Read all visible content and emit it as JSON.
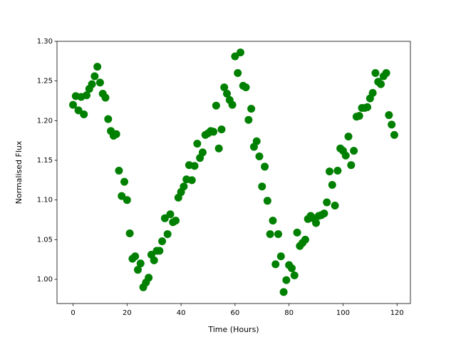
{
  "chart_data": {
    "type": "scatter",
    "xlabel": "Time (Hours)",
    "ylabel": "Normalised Flux",
    "color": "#008000",
    "x": [
      0,
      1,
      2,
      3,
      4,
      5,
      6,
      7,
      8,
      9,
      10,
      11,
      12,
      13,
      14,
      15,
      16,
      17,
      18,
      19,
      20,
      21,
      22,
      23,
      24,
      25,
      26,
      27,
      28,
      29,
      30,
      31,
      32,
      33,
      34,
      35,
      36,
      37,
      38,
      39,
      40,
      41,
      42,
      43,
      44,
      45,
      46,
      47,
      48,
      49,
      50,
      51,
      52,
      53,
      54,
      55,
      56,
      57,
      58,
      59,
      60,
      61,
      62,
      63,
      64,
      65,
      66,
      67,
      68,
      69,
      70,
      71,
      72,
      73,
      74,
      75,
      76,
      77,
      78,
      79,
      80,
      81,
      82,
      83,
      84,
      85,
      86,
      87,
      88,
      89,
      90,
      91,
      92,
      93,
      94,
      95,
      96,
      97,
      98,
      99,
      100,
      101,
      102,
      103,
      104,
      105,
      106,
      107,
      108,
      109,
      110,
      111,
      112,
      113,
      114,
      115,
      116,
      117,
      118,
      119
    ],
    "values": [
      1.22,
      1.231,
      1.213,
      1.23,
      1.208,
      1.232,
      1.24,
      1.246,
      1.256,
      1.268,
      1.248,
      1.234,
      1.229,
      1.202,
      1.187,
      1.181,
      1.183,
      1.137,
      1.105,
      1.123,
      1.1,
      1.058,
      1.026,
      1.029,
      1.012,
      1.02,
      0.99,
      0.996,
      1.002,
      1.031,
      1.024,
      1.036,
      1.036,
      1.048,
      1.077,
      1.057,
      1.082,
      1.072,
      1.074,
      1.103,
      1.11,
      1.117,
      1.126,
      1.144,
      1.125,
      1.143,
      1.171,
      1.153,
      1.16,
      1.182,
      1.184,
      1.187,
      1.186,
      1.219,
      1.165,
      1.189,
      1.242,
      1.234,
      1.226,
      1.22,
      1.281,
      1.26,
      1.286,
      1.244,
      1.242,
      1.201,
      1.215,
      1.167,
      1.174,
      1.155,
      1.117,
      1.142,
      1.099,
      1.057,
      1.074,
      1.019,
      1.057,
      1.029,
      0.984,
      0.999,
      1.018,
      1.014,
      1.005,
      1.059,
      1.042,
      1.046,
      1.05,
      1.076,
      1.08,
      1.077,
      1.071,
      1.08,
      1.081,
      1.083,
      1.097,
      1.136,
      1.119,
      1.093,
      1.137,
      1.165,
      1.162,
      1.156,
      1.18,
      1.144,
      1.162,
      1.205,
      1.206,
      1.216,
      1.216,
      1.217,
      1.228,
      1.235,
      1.26,
      1.249,
      1.246,
      1.256,
      1.26,
      1.207,
      1.195,
      1.182
    ],
    "xlim": [
      -5.95,
      124.95
    ],
    "ylim": [
      0.9695,
      1.3
    ],
    "xticks": [
      0,
      20,
      40,
      60,
      80,
      100,
      120
    ],
    "yticks": [
      {
        "value": 1.0,
        "label": "1.00"
      },
      1.05,
      {
        "value": 1.1,
        "label": "1.10"
      },
      1.15,
      {
        "value": 1.2,
        "label": "1.20"
      },
      1.25,
      {
        "value": 1.3,
        "label": "1.30"
      }
    ]
  }
}
